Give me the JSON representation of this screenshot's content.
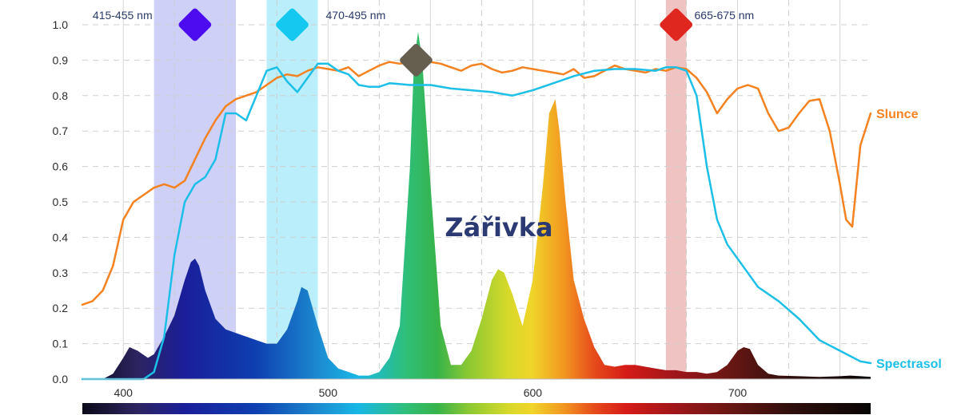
{
  "chart_data": {
    "type": "line",
    "title": "",
    "xlabel": "",
    "ylabel": "",
    "xlim": [
      380,
      765
    ],
    "ylim": [
      0,
      1.0
    ],
    "x_ticks": [
      {
        "value": 400,
        "label": "400"
      },
      {
        "value": 500,
        "label": "500"
      },
      {
        "value": 600,
        "label": "600"
      },
      {
        "value": 700,
        "label": "700"
      }
    ],
    "y_ticks": [
      {
        "value": 0.0,
        "label": "0.0"
      },
      {
        "value": 0.1,
        "label": "0.1"
      },
      {
        "value": 0.2,
        "label": "0.2"
      },
      {
        "value": 0.3,
        "label": "0.3"
      },
      {
        "value": 0.4,
        "label": "0.4"
      },
      {
        "value": 0.5,
        "label": "0.5"
      },
      {
        "value": 0.6,
        "label": "0.6"
      },
      {
        "value": 0.7,
        "label": "0.7"
      },
      {
        "value": 0.8,
        "label": "0.8"
      },
      {
        "value": 0.9,
        "label": "0.9"
      },
      {
        "value": 1.0,
        "label": "1.0"
      }
    ],
    "grid": true,
    "bands": [
      {
        "label": "415-455 nm",
        "from": 415,
        "to": 455,
        "color": "#c9cbf7",
        "marker_color": "#4d0cf0"
      },
      {
        "label": "470-495 nm",
        "from": 470,
        "to": 495,
        "color": "#b2ecf9",
        "marker_color": "#14c8f0"
      },
      {
        "label": "665-675 nm",
        "from": 665,
        "to": 675,
        "color": "#eebcbc",
        "marker_color": "#e0271f"
      }
    ],
    "peak_marker": {
      "x": 543,
      "y": 0.9,
      "color": "#665f4f"
    },
    "center_label": "Zářivka",
    "series": [
      {
        "name": "Slunce",
        "color": "#f58220",
        "x": [
          380,
          385,
          390,
          395,
          400,
          405,
          410,
          415,
          420,
          425,
          430,
          435,
          440,
          445,
          450,
          455,
          460,
          465,
          470,
          475,
          480,
          485,
          490,
          495,
          500,
          505,
          510,
          515,
          520,
          525,
          530,
          535,
          540,
          545,
          550,
          555,
          560,
          565,
          570,
          575,
          580,
          585,
          590,
          595,
          600,
          605,
          610,
          615,
          620,
          625,
          630,
          635,
          640,
          645,
          650,
          655,
          660,
          665,
          670,
          675,
          680,
          685,
          690,
          695,
          700,
          705,
          710,
          715,
          720,
          725,
          730,
          735,
          740,
          745,
          750,
          753,
          756,
          760,
          765
        ],
        "y": [
          0.21,
          0.22,
          0.25,
          0.32,
          0.45,
          0.5,
          0.52,
          0.54,
          0.55,
          0.54,
          0.56,
          0.62,
          0.68,
          0.73,
          0.77,
          0.79,
          0.8,
          0.81,
          0.83,
          0.85,
          0.86,
          0.855,
          0.87,
          0.88,
          0.875,
          0.87,
          0.88,
          0.855,
          0.87,
          0.885,
          0.895,
          0.89,
          0.895,
          0.905,
          0.895,
          0.89,
          0.88,
          0.87,
          0.885,
          0.89,
          0.875,
          0.865,
          0.87,
          0.88,
          0.875,
          0.87,
          0.865,
          0.86,
          0.875,
          0.85,
          0.855,
          0.87,
          0.885,
          0.875,
          0.87,
          0.865,
          0.875,
          0.87,
          0.88,
          0.875,
          0.85,
          0.81,
          0.75,
          0.79,
          0.82,
          0.83,
          0.82,
          0.75,
          0.7,
          0.71,
          0.75,
          0.785,
          0.79,
          0.7,
          0.55,
          0.45,
          0.43,
          0.66,
          0.75
        ]
      },
      {
        "name": "Spectrasol",
        "color": "#1cbfe8",
        "x": [
          380,
          390,
          400,
          405,
          410,
          415,
          420,
          425,
          430,
          435,
          440,
          445,
          450,
          455,
          460,
          465,
          470,
          475,
          480,
          485,
          490,
          495,
          500,
          505,
          510,
          515,
          520,
          525,
          530,
          540,
          550,
          560,
          570,
          580,
          590,
          600,
          610,
          620,
          630,
          640,
          650,
          660,
          665,
          670,
          675,
          680,
          685,
          690,
          695,
          700,
          705,
          710,
          720,
          730,
          740,
          750,
          760,
          765
        ],
        "y": [
          0.0,
          0.0,
          0.0,
          0.0,
          0.0,
          0.02,
          0.12,
          0.35,
          0.5,
          0.55,
          0.57,
          0.62,
          0.75,
          0.75,
          0.73,
          0.8,
          0.87,
          0.88,
          0.84,
          0.81,
          0.85,
          0.89,
          0.89,
          0.87,
          0.86,
          0.83,
          0.825,
          0.825,
          0.835,
          0.83,
          0.83,
          0.82,
          0.815,
          0.81,
          0.8,
          0.815,
          0.835,
          0.855,
          0.87,
          0.875,
          0.875,
          0.87,
          0.88,
          0.88,
          0.87,
          0.8,
          0.6,
          0.45,
          0.38,
          0.34,
          0.3,
          0.26,
          0.22,
          0.17,
          0.11,
          0.08,
          0.05,
          0.045
        ]
      },
      {
        "name": "Zářivka",
        "color": "spectrum",
        "x": [
          380,
          390,
          395,
          400,
          403,
          407,
          412,
          415,
          420,
          425,
          430,
          433,
          435,
          437,
          440,
          445,
          450,
          455,
          460,
          465,
          470,
          475,
          480,
          485,
          487,
          490,
          495,
          500,
          505,
          510,
          515,
          520,
          525,
          530,
          535,
          540,
          542,
          544,
          546,
          550,
          555,
          560,
          565,
          570,
          575,
          580,
          583,
          586,
          590,
          595,
          600,
          605,
          608,
          611,
          613,
          616,
          620,
          625,
          630,
          635,
          640,
          645,
          650,
          655,
          660,
          665,
          670,
          675,
          680,
          685,
          690,
          695,
          700,
          703,
          706,
          710,
          715,
          720,
          730,
          740,
          750,
          755,
          760,
          765
        ],
        "y": [
          0.0,
          0.0,
          0.015,
          0.06,
          0.09,
          0.08,
          0.06,
          0.07,
          0.12,
          0.18,
          0.28,
          0.33,
          0.34,
          0.32,
          0.25,
          0.17,
          0.14,
          0.13,
          0.12,
          0.11,
          0.1,
          0.1,
          0.14,
          0.22,
          0.26,
          0.25,
          0.15,
          0.06,
          0.03,
          0.02,
          0.01,
          0.01,
          0.02,
          0.06,
          0.15,
          0.6,
          0.9,
          0.98,
          0.9,
          0.55,
          0.15,
          0.04,
          0.04,
          0.08,
          0.17,
          0.28,
          0.31,
          0.3,
          0.24,
          0.15,
          0.28,
          0.55,
          0.75,
          0.79,
          0.7,
          0.5,
          0.28,
          0.17,
          0.09,
          0.04,
          0.035,
          0.04,
          0.04,
          0.035,
          0.03,
          0.025,
          0.025,
          0.02,
          0.02,
          0.015,
          0.02,
          0.04,
          0.08,
          0.09,
          0.085,
          0.04,
          0.015,
          0.01,
          0.008,
          0.006,
          0.008,
          0.01,
          0.008,
          0.006
        ]
      }
    ]
  }
}
